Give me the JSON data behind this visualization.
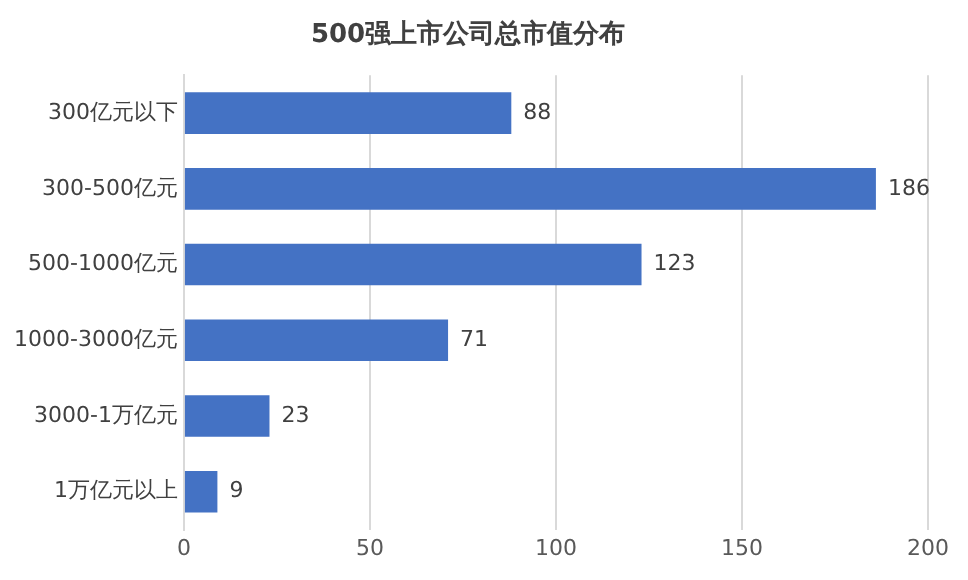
{
  "chart_data": {
    "type": "bar",
    "orientation": "horizontal",
    "title": "500强上市公司总市值分布",
    "categories": [
      "300亿元以下",
      "300-500亿元",
      "500-1000亿元",
      "1000-3000亿元",
      "3000-1万亿元",
      "1万亿元以上"
    ],
    "values": [
      88,
      186,
      123,
      71,
      23,
      9
    ],
    "color": "#4472c4",
    "xlim": [
      0,
      200
    ],
    "xticks": [
      0,
      50,
      100,
      150,
      200
    ],
    "grid": "x",
    "data_labels": true
  }
}
